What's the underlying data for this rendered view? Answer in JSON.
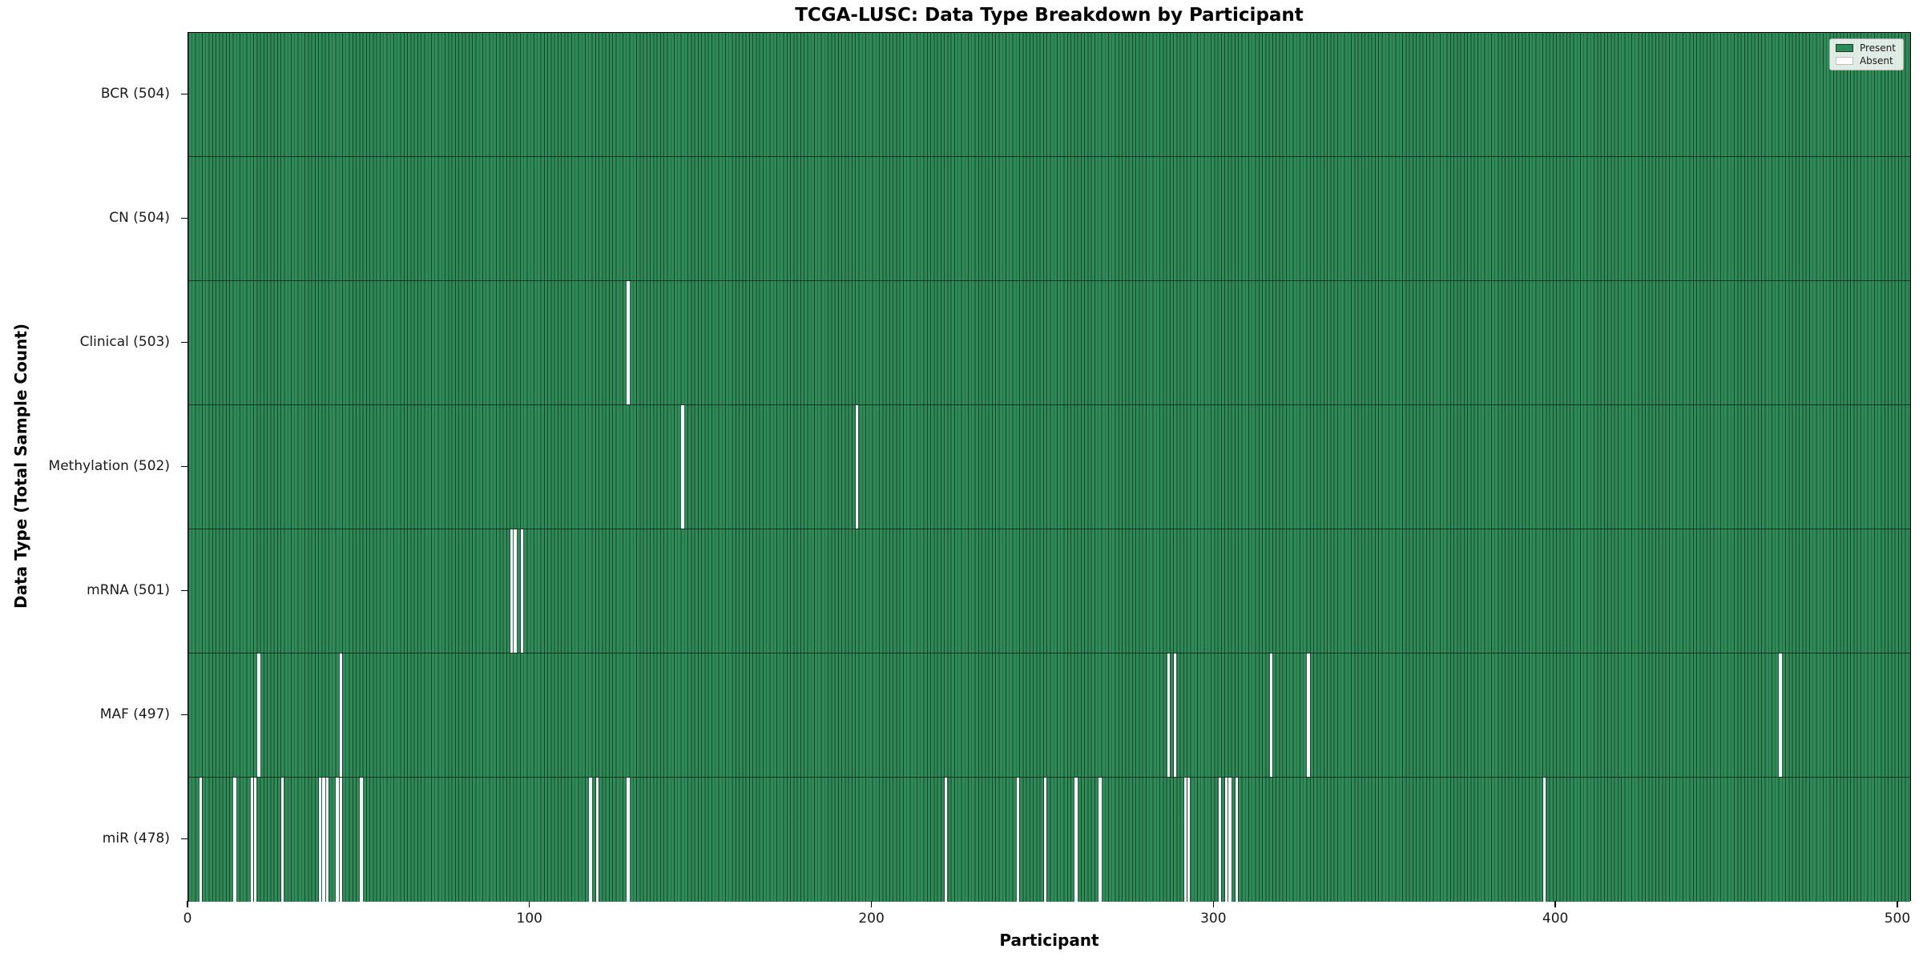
{
  "chart_data": {
    "type": "heatmap",
    "title": "TCGA-LUSC: Data Type Breakdown by Participant",
    "xlabel": "Participant",
    "ylabel": "Data Type (Total Sample Count)",
    "x_ticks": [
      0,
      100,
      200,
      300,
      400,
      500
    ],
    "x_range": [
      0,
      504
    ],
    "n_participants": 504,
    "grid": "off",
    "legend_position": "upper right",
    "legend": [
      {
        "label": "Present",
        "color": "#2e8b57"
      },
      {
        "label": "Absent",
        "color": "#ffffff"
      }
    ],
    "colors": {
      "present": "#2e8b57",
      "absent": "#ffffff",
      "bar_edge": "rgba(0,0,0,0.5)"
    },
    "rows": [
      {
        "label": "BCR (504)",
        "data_type": "BCR",
        "total_samples": 504,
        "absent_participants": []
      },
      {
        "label": "CN (504)",
        "data_type": "CN",
        "total_samples": 504,
        "absent_participants": []
      },
      {
        "label": "Clinical (503)",
        "data_type": "Clinical",
        "total_samples": 503,
        "absent_participants": [
          128
        ]
      },
      {
        "label": "Methylation (502)",
        "data_type": "Methylation",
        "total_samples": 502,
        "absent_participants": [
          144,
          195
        ]
      },
      {
        "label": "mRNA (501)",
        "data_type": "mRNA",
        "total_samples": 501,
        "absent_participants": [
          94,
          95,
          97
        ]
      },
      {
        "label": "MAF (497)",
        "data_type": "MAF",
        "total_samples": 497,
        "absent_participants": [
          20,
          44,
          286,
          288,
          316,
          327,
          465
        ]
      },
      {
        "label": "miR (478)",
        "data_type": "miR",
        "total_samples": 478,
        "absent_participants": [
          3,
          13,
          18,
          19,
          27,
          38,
          39,
          40,
          43,
          44,
          50,
          117,
          119,
          128,
          221,
          242,
          250,
          259,
          266,
          291,
          292,
          301,
          303,
          304,
          306,
          396
        ]
      }
    ]
  }
}
